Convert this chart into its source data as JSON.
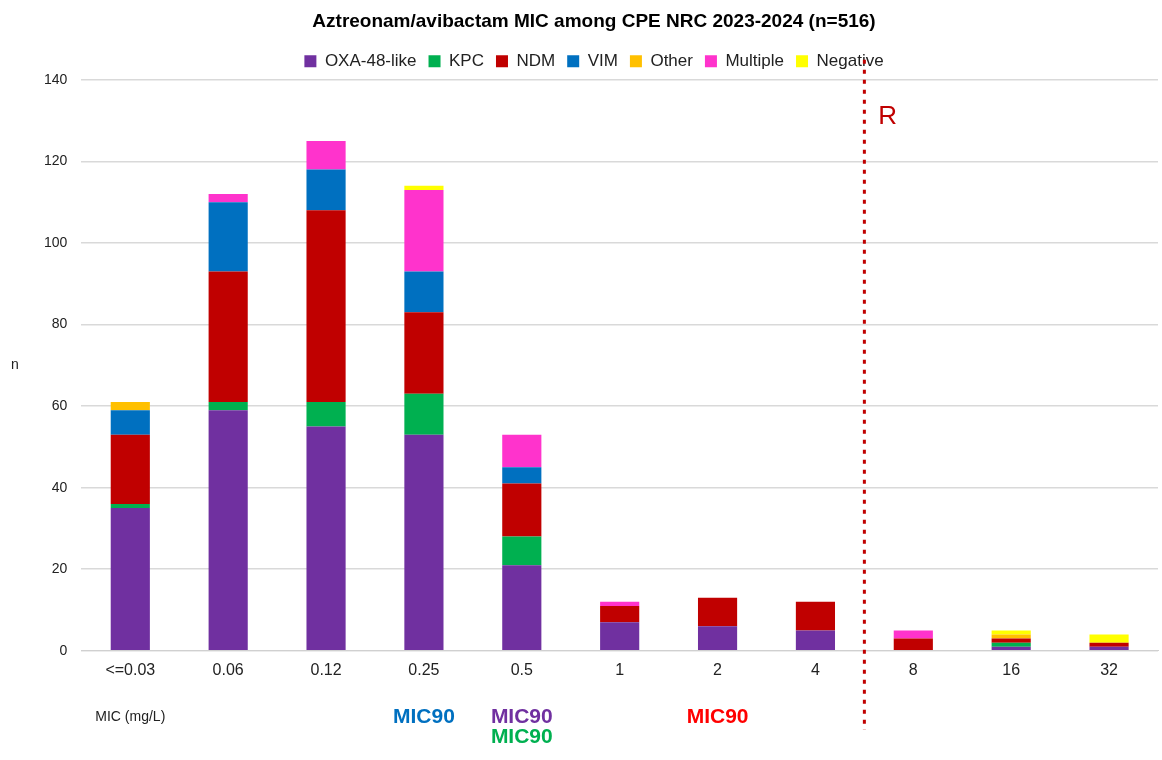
{
  "chart_data": {
    "type": "bar",
    "title": "Aztreonam/avibactam MIC among CPE NRC 2023-2024 (n=516)",
    "xlabel": "MIC (mg/L)",
    "ylabel": "n",
    "categories": [
      "<=0.03",
      "0.06",
      "0.12",
      "0.25",
      "0.5",
      "1",
      "2",
      "4",
      "8",
      "16",
      "32"
    ],
    "series": [
      {
        "name": "OXA-48-like",
        "color": "#7030a0",
        "values": [
          35,
          59,
          55,
          53,
          21,
          7,
          6,
          5,
          0,
          1,
          1
        ]
      },
      {
        "name": "KPC",
        "color": "#00b050",
        "values": [
          1,
          2,
          6,
          10,
          7,
          0,
          0,
          0,
          0,
          1,
          0
        ]
      },
      {
        "name": "NDM",
        "color": "#c00000",
        "values": [
          17,
          32,
          47,
          20,
          13,
          4,
          7,
          7,
          3,
          1,
          1
        ]
      },
      {
        "name": "VIM",
        "color": "#0070c0",
        "values": [
          6,
          17,
          10,
          10,
          4,
          0,
          0,
          0,
          0,
          0,
          0
        ]
      },
      {
        "name": "Other",
        "color": "#ffc000",
        "values": [
          2,
          0,
          0,
          0,
          0,
          0,
          0,
          0,
          0,
          1,
          0
        ]
      },
      {
        "name": "Multiple",
        "color": "#ff33cc",
        "values": [
          0,
          2,
          7,
          20,
          8,
          1,
          0,
          0,
          2,
          0,
          0
        ]
      },
      {
        "name": "Negative",
        "color": "#ffff00",
        "values": [
          0,
          0,
          0,
          1,
          0,
          0,
          0,
          0,
          0,
          1,
          2
        ]
      }
    ],
    "stacked": true,
    "ylim": [
      0,
      140
    ],
    "yticks": [
      0,
      20,
      40,
      60,
      80,
      100,
      120,
      140
    ],
    "grid": "y",
    "legend": "top",
    "ref_lines": [
      {
        "axis": "x",
        "value": "8",
        "label": "R",
        "color": "#c00000",
        "line_style": "dotted"
      }
    ],
    "annotations": [
      "MIC90",
      "MIC90",
      "MIC90",
      "MIC90"
    ]
  }
}
